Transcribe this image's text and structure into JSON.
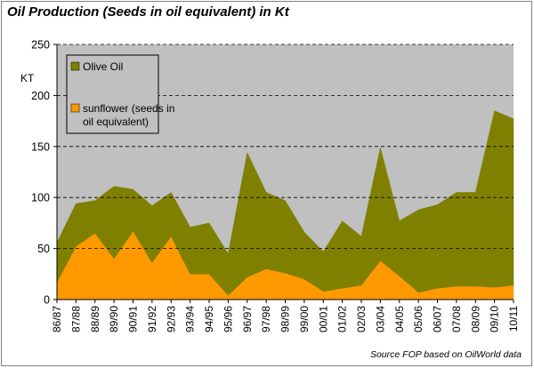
{
  "chart_data": {
    "type": "area",
    "stacked": true,
    "title": "Oil Production (Seeds in oil equivalent) in Kt",
    "ylabel": "KT",
    "xlabel": "",
    "source": "Source FOP based on OilWorld data",
    "ylim": [
      0,
      250
    ],
    "yticks": [
      0,
      50,
      100,
      150,
      200,
      250
    ],
    "grid": "horizontal-dashed",
    "legend": "top-left",
    "categories": [
      "86/87",
      "87/88",
      "88/89",
      "89/90",
      "90/91",
      "91/92",
      "92/93",
      "93/94",
      "94/95",
      "95/96",
      "96/97",
      "97/98",
      "98/99",
      "99/00",
      "00/01",
      "01/02",
      "02/03",
      "03/04",
      "04/05",
      "05/06",
      "06/07",
      "07/08",
      "08/09",
      "09/10",
      "10/11"
    ],
    "series": [
      {
        "name": "sunflower (seeds in oil equivalent)",
        "color": "#ff9900",
        "values": [
          17,
          52,
          65,
          40,
          67,
          36,
          62,
          25,
          25,
          4,
          22,
          30,
          26,
          20,
          8,
          11,
          14,
          38,
          23,
          7,
          11,
          13,
          13,
          12,
          14
        ]
      },
      {
        "name": "Olive Oil",
        "color": "#808000",
        "values": [
          39,
          42,
          32,
          71,
          41,
          56,
          43,
          46,
          50,
          41,
          122,
          75,
          71,
          46,
          39,
          66,
          48,
          111,
          54,
          81,
          82,
          92,
          92,
          173,
          163
        ]
      }
    ],
    "legend_labels": {
      "olive": "Olive Oil",
      "sunflower_line1": "sunflower (seeds in",
      "sunflower_line2": "oil equivalent)"
    }
  }
}
